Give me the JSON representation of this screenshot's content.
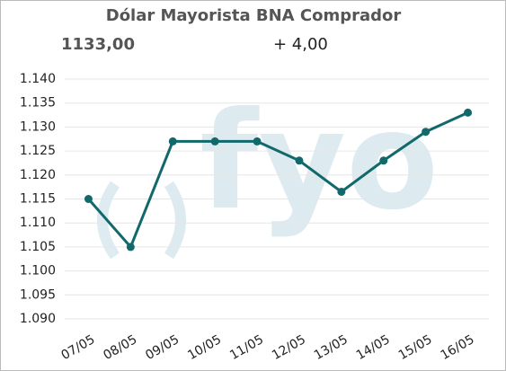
{
  "chart_data": {
    "type": "line",
    "title": "Dólar Mayorista BNA Comprador",
    "value_text": "1133,00",
    "change_text": "+ 4,00",
    "watermark": "fyo",
    "categories": [
      "07/05",
      "08/05",
      "09/05",
      "10/05",
      "11/05",
      "12/05",
      "13/05",
      "14/05",
      "15/05",
      "16/05"
    ],
    "series": [
      {
        "color": "#12696b",
        "values": [
          1115,
          1105,
          1127,
          1127,
          1127,
          1123,
          1116.5,
          1123,
          1129,
          1133
        ]
      }
    ],
    "ylim": [
      1090,
      1140
    ],
    "yticks": [
      {
        "value": 1090,
        "label": "1.090"
      },
      {
        "value": 1095,
        "label": "1.095"
      },
      {
        "value": 1100,
        "label": "1.100"
      },
      {
        "value": 1105,
        "label": "1.105"
      },
      {
        "value": 1110,
        "label": "1.110"
      },
      {
        "value": 1115,
        "label": "1.115"
      },
      {
        "value": 1120,
        "label": "1.120"
      },
      {
        "value": 1125,
        "label": "1.125"
      },
      {
        "value": 1130,
        "label": "1.130"
      },
      {
        "value": 1135,
        "label": "1.135"
      },
      {
        "value": 1140,
        "label": "1.140"
      }
    ],
    "grid": true
  }
}
